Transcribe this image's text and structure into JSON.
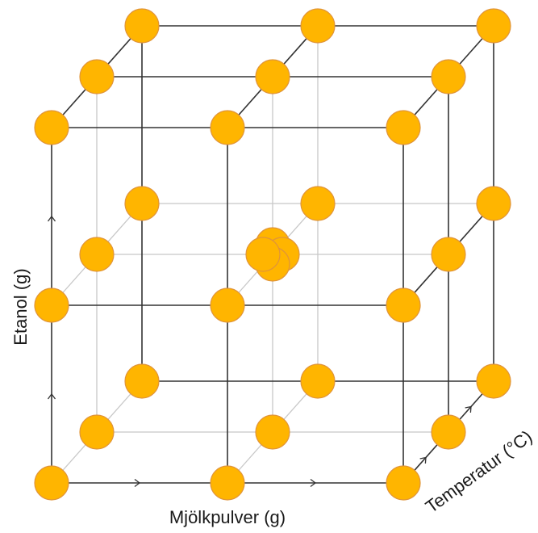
{
  "diagram": {
    "axes": {
      "x_label": "Mjölkpulver (g)",
      "y_label": "Etanol (g)",
      "z_label": "Temperatur (°C)"
    },
    "design_levels": [
      -1,
      0,
      1
    ],
    "center_replicates": 4,
    "colors": {
      "point_fill": "#FFB500",
      "point_stroke": "#E0943A",
      "edge_dark": "#333333",
      "edge_light": "#C8C8C8"
    }
  }
}
